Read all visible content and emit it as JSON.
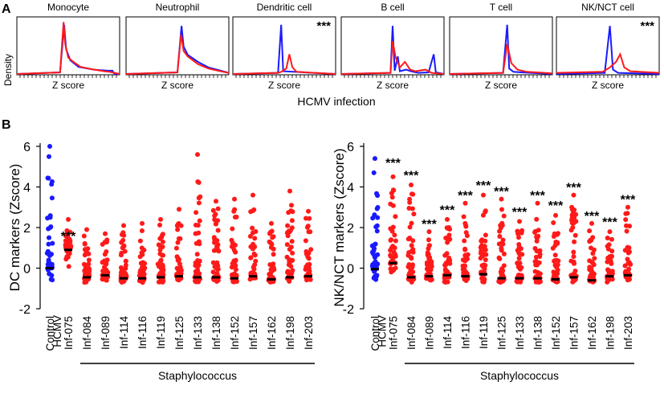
{
  "panel_a": {
    "label": "A",
    "y_label": "Density",
    "x_label": "Z score",
    "super_label": "HCMV infection",
    "colors": {
      "control": "#1a1aff",
      "infected": "#ff1a1a"
    },
    "cells": [
      {
        "title": "Monocyte",
        "sig": "",
        "blue": [
          [
            0.0,
            0
          ],
          [
            0.42,
            0.03
          ],
          [
            0.46,
            0.9
          ],
          [
            0.48,
            0.45
          ],
          [
            0.52,
            0.25
          ],
          [
            0.6,
            0.13
          ],
          [
            0.75,
            0.08
          ],
          [
            0.88,
            0.06
          ],
          [
            0.93,
            0.06
          ],
          [
            0.95,
            0.0
          ],
          [
            1.0,
            0
          ]
        ],
        "red": [
          [
            0.0,
            0
          ],
          [
            0.42,
            0.03
          ],
          [
            0.455,
            0.95
          ],
          [
            0.47,
            0.55
          ],
          [
            0.5,
            0.3
          ],
          [
            0.55,
            0.22
          ],
          [
            0.62,
            0.13
          ],
          [
            0.72,
            0.09
          ],
          [
            0.85,
            0.05
          ],
          [
            0.9,
            0.04
          ],
          [
            1.0,
            0
          ]
        ]
      },
      {
        "title": "Neutrophil",
        "sig": "",
        "blue": [
          [
            0.0,
            0
          ],
          [
            0.5,
            0.03
          ],
          [
            0.54,
            0.88
          ],
          [
            0.56,
            0.5
          ],
          [
            0.6,
            0.35
          ],
          [
            0.7,
            0.22
          ],
          [
            0.8,
            0.12
          ],
          [
            0.92,
            0.06
          ],
          [
            1.0,
            0.02
          ]
        ],
        "red": [
          [
            0.0,
            0
          ],
          [
            0.5,
            0.03
          ],
          [
            0.535,
            0.72
          ],
          [
            0.56,
            0.42
          ],
          [
            0.6,
            0.32
          ],
          [
            0.7,
            0.18
          ],
          [
            0.8,
            0.1
          ],
          [
            0.92,
            0.05
          ],
          [
            1.0,
            0.02
          ]
        ]
      },
      {
        "title": "Dendritic cell",
        "sig": "***",
        "blue": [
          [
            0.0,
            0
          ],
          [
            0.44,
            0.02
          ],
          [
            0.47,
            0.9
          ],
          [
            0.49,
            0.05
          ],
          [
            1.0,
            0
          ]
        ],
        "red": [
          [
            0.0,
            0
          ],
          [
            0.44,
            0.02
          ],
          [
            0.47,
            0.04
          ],
          [
            0.52,
            0.1
          ],
          [
            0.55,
            0.36
          ],
          [
            0.58,
            0.12
          ],
          [
            0.62,
            0.04
          ],
          [
            1.0,
            0
          ]
        ]
      },
      {
        "title": "B cell",
        "sig": "",
        "blue": [
          [
            0.0,
            0
          ],
          [
            0.48,
            0.02
          ],
          [
            0.5,
            0.88
          ],
          [
            0.52,
            0.06
          ],
          [
            0.55,
            0.32
          ],
          [
            0.57,
            0.05
          ],
          [
            0.63,
            0.08
          ],
          [
            0.68,
            0.05
          ],
          [
            0.75,
            0.02
          ],
          [
            0.85,
            0.03
          ],
          [
            0.9,
            0.36
          ],
          [
            0.92,
            0.03
          ],
          [
            1.0,
            0
          ]
        ],
        "red": [
          [
            0.0,
            0
          ],
          [
            0.48,
            0.02
          ],
          [
            0.5,
            0.6
          ],
          [
            0.53,
            0.3
          ],
          [
            0.57,
            0.12
          ],
          [
            0.62,
            0.22
          ],
          [
            0.67,
            0.08
          ],
          [
            0.72,
            0.05
          ],
          [
            0.82,
            0.08
          ],
          [
            0.88,
            0.02
          ],
          [
            1.0,
            0
          ]
        ]
      },
      {
        "title": "T cell",
        "sig": "",
        "blue": [
          [
            0.0,
            0
          ],
          [
            0.52,
            0.02
          ],
          [
            0.56,
            0.9
          ],
          [
            0.58,
            0.1
          ],
          [
            0.62,
            0.04
          ],
          [
            0.7,
            0.03
          ],
          [
            1.0,
            0
          ]
        ],
        "red": [
          [
            0.0,
            0
          ],
          [
            0.52,
            0.02
          ],
          [
            0.56,
            0.55
          ],
          [
            0.6,
            0.2
          ],
          [
            0.66,
            0.08
          ],
          [
            0.75,
            0.04
          ],
          [
            1.0,
            0.01
          ]
        ]
      },
      {
        "title": "NK/NCT cell",
        "sig": "***",
        "blue": [
          [
            0.0,
            0
          ],
          [
            0.47,
            0.02
          ],
          [
            0.52,
            0.88
          ],
          [
            0.55,
            0.08
          ],
          [
            0.6,
            0.02
          ],
          [
            1.0,
            0
          ]
        ],
        "red": [
          [
            0.0,
            0.02
          ],
          [
            0.45,
            0.04
          ],
          [
            0.52,
            0.12
          ],
          [
            0.58,
            0.22
          ],
          [
            0.62,
            0.36
          ],
          [
            0.66,
            0.12
          ],
          [
            0.72,
            0.05
          ],
          [
            1.0,
            0.02
          ]
        ]
      }
    ]
  },
  "panel_b": {
    "label": "B",
    "group_label": "Staphylococcus",
    "hcmv_label": "HCMV",
    "chart_data": [
      {
        "type": "scatter",
        "ylabel": "DC markers (Zscore)",
        "ylim": [
          -2,
          6
        ],
        "yticks": [
          -2,
          0,
          2,
          4,
          6
        ],
        "sig_row": 1.6,
        "categories": [
          "Control",
          "Inf-075",
          "Inf-084",
          "Inf-089",
          "Inf-114",
          "Inf-116",
          "Inf-119",
          "Inf-125",
          "Inf-133",
          "Inf-138",
          "Inf-152",
          "Inf-157",
          "Inf-162",
          "Inf-198",
          "Inf-203"
        ],
        "series": [
          {
            "name": "Control",
            "color": "#1a1aff",
            "median": 0.0,
            "max": 6.0,
            "min": -0.6,
            "sig": ""
          },
          {
            "name": "Inf-075",
            "color": "#ff1a1a",
            "median": 0.9,
            "max": 2.4,
            "min": 0.0,
            "sig": "***"
          },
          {
            "name": "Inf-084",
            "color": "#ff1a1a",
            "median": -0.45,
            "max": 1.9,
            "min": -0.7,
            "sig": ""
          },
          {
            "name": "Inf-089",
            "color": "#ff1a1a",
            "median": -0.35,
            "max": 1.7,
            "min": -0.6,
            "sig": ""
          },
          {
            "name": "Inf-114",
            "color": "#ff1a1a",
            "median": -0.5,
            "max": 2.1,
            "min": -0.7,
            "sig": ""
          },
          {
            "name": "Inf-116",
            "color": "#ff1a1a",
            "median": -0.5,
            "max": 2.2,
            "min": -0.7,
            "sig": ""
          },
          {
            "name": "Inf-119",
            "color": "#ff1a1a",
            "median": -0.45,
            "max": 2.4,
            "min": -0.7,
            "sig": ""
          },
          {
            "name": "Inf-125",
            "color": "#ff1a1a",
            "median": -0.4,
            "max": 2.9,
            "min": -0.6,
            "sig": ""
          },
          {
            "name": "Inf-133",
            "color": "#ff1a1a",
            "median": -0.45,
            "max": 5.6,
            "min": -0.7,
            "sig": ""
          },
          {
            "name": "Inf-138",
            "color": "#ff1a1a",
            "median": -0.45,
            "max": 3.3,
            "min": -0.7,
            "sig": ""
          },
          {
            "name": "Inf-152",
            "color": "#ff1a1a",
            "median": -0.5,
            "max": 3.4,
            "min": -0.7,
            "sig": ""
          },
          {
            "name": "Inf-157",
            "color": "#ff1a1a",
            "median": -0.4,
            "max": 3.6,
            "min": -0.6,
            "sig": ""
          },
          {
            "name": "Inf-162",
            "color": "#ff1a1a",
            "median": -0.55,
            "max": 2.2,
            "min": -0.7,
            "sig": ""
          },
          {
            "name": "Inf-198",
            "color": "#ff1a1a",
            "median": -0.45,
            "max": 3.8,
            "min": -0.7,
            "sig": ""
          },
          {
            "name": "Inf-203",
            "color": "#ff1a1a",
            "median": -0.4,
            "max": 2.8,
            "min": -0.6,
            "sig": ""
          }
        ]
      },
      {
        "type": "scatter",
        "ylabel": "NK/NCT markers (Zscore)",
        "ylim": [
          -2,
          6
        ],
        "yticks": [
          -2,
          0,
          2,
          4,
          6
        ],
        "categories": [
          "Control",
          "Inf-075",
          "Inf-084",
          "Inf-089",
          "Inf-114",
          "Inf-116",
          "Inf-119",
          "Inf-125",
          "Inf-133",
          "Inf-138",
          "Inf-152",
          "Inf-157",
          "Inf-162",
          "Inf-198",
          "Inf-203"
        ],
        "series": [
          {
            "name": "Control",
            "color": "#1a1aff",
            "median": -0.05,
            "max": 5.4,
            "min": -0.6,
            "sig": ""
          },
          {
            "name": "Inf-075",
            "color": "#ff1a1a",
            "median": 0.25,
            "max": 4.5,
            "min": -0.3,
            "sig": "***",
            "sig_y": 5.2
          },
          {
            "name": "Inf-084",
            "color": "#ff1a1a",
            "median": -0.45,
            "max": 4.1,
            "min": -0.7,
            "sig": "***",
            "sig_y": 4.6
          },
          {
            "name": "Inf-089",
            "color": "#ff1a1a",
            "median": -0.4,
            "max": 1.8,
            "min": -0.7,
            "sig": "***",
            "sig_y": 2.2
          },
          {
            "name": "Inf-114",
            "color": "#ff1a1a",
            "median": -0.35,
            "max": 2.4,
            "min": -0.7,
            "sig": "***",
            "sig_y": 2.9
          },
          {
            "name": "Inf-116",
            "color": "#ff1a1a",
            "median": -0.4,
            "max": 3.2,
            "min": -0.7,
            "sig": "***",
            "sig_y": 3.6
          },
          {
            "name": "Inf-119",
            "color": "#ff1a1a",
            "median": -0.3,
            "max": 3.6,
            "min": -0.7,
            "sig": "***",
            "sig_y": 4.1
          },
          {
            "name": "Inf-125",
            "color": "#ff1a1a",
            "median": -0.5,
            "max": 3.4,
            "min": -0.7,
            "sig": "***",
            "sig_y": 3.8
          },
          {
            "name": "Inf-133",
            "color": "#ff1a1a",
            "median": -0.5,
            "max": 2.3,
            "min": -0.7,
            "sig": "***",
            "sig_y": 2.8
          },
          {
            "name": "Inf-138",
            "color": "#ff1a1a",
            "median": -0.5,
            "max": 3.2,
            "min": -0.7,
            "sig": "***",
            "sig_y": 3.6
          },
          {
            "name": "Inf-152",
            "color": "#ff1a1a",
            "median": -0.55,
            "max": 2.6,
            "min": -0.7,
            "sig": "***",
            "sig_y": 3.1
          },
          {
            "name": "Inf-157",
            "color": "#ff1a1a",
            "median": -0.45,
            "max": 3.6,
            "min": -0.7,
            "sig": "***",
            "sig_y": 4.0
          },
          {
            "name": "Inf-162",
            "color": "#ff1a1a",
            "median": -0.6,
            "max": 2.2,
            "min": -0.7,
            "sig": "***",
            "sig_y": 2.6
          },
          {
            "name": "Inf-198",
            "color": "#ff1a1a",
            "median": -0.4,
            "max": 1.8,
            "min": -0.7,
            "sig": "***",
            "sig_y": 2.3
          },
          {
            "name": "Inf-203",
            "color": "#ff1a1a",
            "median": -0.35,
            "max": 3.0,
            "min": -0.6,
            "sig": "***",
            "sig_y": 3.4
          }
        ]
      }
    ]
  }
}
